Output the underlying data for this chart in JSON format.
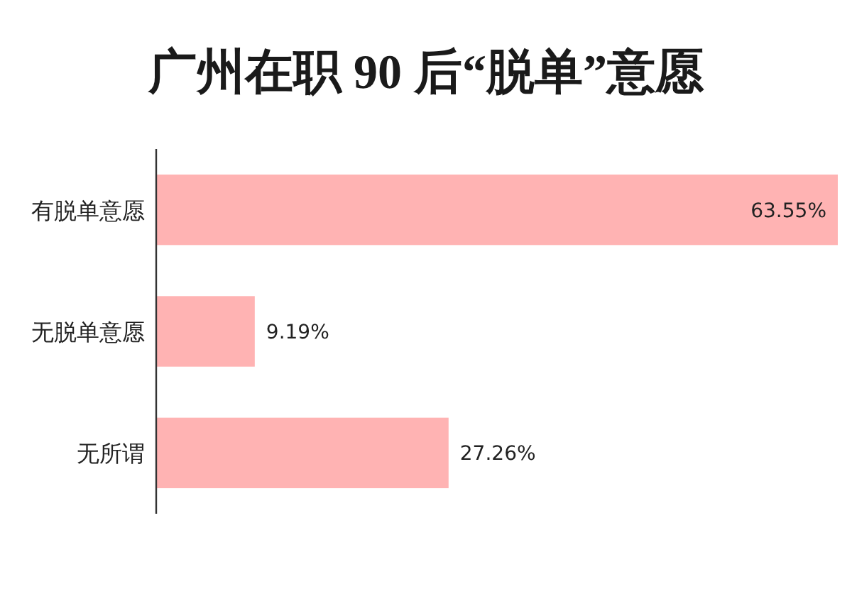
{
  "chart_data": {
    "type": "bar",
    "orientation": "horizontal",
    "title": "广州在职 90 后“脱单”意愿",
    "categories": [
      "有脱单意愿",
      "无脱单意愿",
      "无所谓"
    ],
    "values": [
      63.55,
      9.19,
      27.26
    ],
    "value_labels": [
      "63.55%",
      "9.19%",
      "27.26%"
    ],
    "color": "#ffb3b3"
  }
}
